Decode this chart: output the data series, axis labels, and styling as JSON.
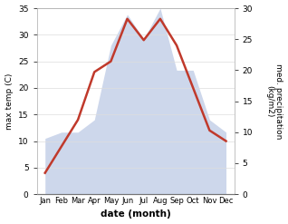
{
  "months": [
    "Jan",
    "Feb",
    "Mar",
    "Apr",
    "May",
    "Jun",
    "Jul",
    "Aug",
    "Sep",
    "Oct",
    "Nov",
    "Dec"
  ],
  "temperature": [
    4,
    9,
    14,
    23,
    25,
    33,
    29,
    33,
    28,
    20,
    12,
    10
  ],
  "precipitation": [
    9,
    10,
    10,
    12,
    24,
    29,
    25,
    30,
    20,
    20,
    12,
    10
  ],
  "temp_color": "#c0392b",
  "precip_color_fill": "#c5d0e8",
  "xlabel": "date (month)",
  "ylabel_left": "max temp (C)",
  "ylabel_right": "med. precipitation\n(kg/m2)",
  "ylim_left": [
    0,
    35
  ],
  "ylim_right": [
    0,
    30
  ],
  "yticks_left": [
    0,
    5,
    10,
    15,
    20,
    25,
    30,
    35
  ],
  "yticks_right": [
    0,
    5,
    10,
    15,
    20,
    25,
    30
  ],
  "grid_color": "#dddddd"
}
